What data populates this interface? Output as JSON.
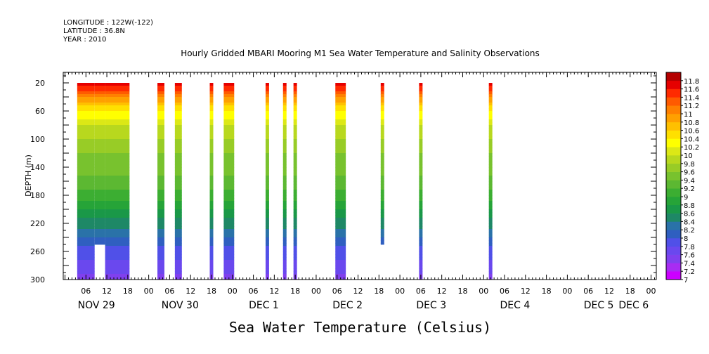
{
  "header": {
    "longitude": "LONGITUDE : 122W(-122)",
    "latitude": "LATITUDE : 36.8N",
    "year": "YEAR : 2010"
  },
  "chart_data": {
    "type": "heatmap",
    "title": "Hourly Gridded MBARI Mooring M1 Sea Water Temperature and Salinity Observations",
    "xlabel": "Sea Water Temperature (Celsius)",
    "ylabel": "DEPTH (m)",
    "x_units": "hours since 2010-11-29 00:00",
    "xlim": [
      -0.5,
      169.5
    ],
    "ylim": [
      300,
      5
    ],
    "y_ticks": [
      20,
      60,
      100,
      140,
      180,
      220,
      260,
      300
    ],
    "x_hour_ticks": [
      "06",
      "12",
      "18",
      "00",
      "06",
      "12",
      "18",
      "00",
      "06",
      "12",
      "18",
      "00",
      "06",
      "12",
      "18",
      "00",
      "06",
      "12",
      "18",
      "00",
      "06",
      "12",
      "18",
      "00",
      "06",
      "12",
      "18",
      "00",
      "06",
      "12",
      "18",
      "00"
    ],
    "x_hour_tick_positions": [
      6,
      12,
      18,
      24,
      30,
      36,
      42,
      48,
      54,
      60,
      66,
      72,
      78,
      84,
      90,
      96,
      102,
      108,
      114,
      120,
      126,
      132,
      138,
      144,
      150,
      156,
      162,
      168,
      174,
      180,
      186,
      192
    ],
    "day_labels": [
      {
        "label": "NOV 29",
        "x": 9
      },
      {
        "label": "NOV 30",
        "x": 33
      },
      {
        "label": "DEC  1",
        "x": 57
      },
      {
        "label": "DEC  2",
        "x": 81
      },
      {
        "label": "DEC  3",
        "x": 105
      },
      {
        "label": "DEC  4",
        "x": 129
      },
      {
        "label": "DEC  5",
        "x": 153
      },
      {
        "label": "DEC  6",
        "x": 163
      }
    ],
    "colorbar": {
      "levels": [
        "7",
        "7.2",
        "7.4",
        "7.6",
        "7.8",
        "8",
        "8.2",
        "8.4",
        "8.6",
        "8.8",
        "9",
        "9.2",
        "9.4",
        "9.6",
        "9.8",
        "10",
        "10.2",
        "10.4",
        "10.6",
        "10.8",
        "11",
        "11.2",
        "11.4",
        "11.6",
        "11.8"
      ],
      "colors": [
        "#cc00ff",
        "#a82cf2",
        "#8040ee",
        "#6a48ee",
        "#5050e8",
        "#2f5fc0",
        "#2a72a8",
        "#1e8866",
        "#1a9848",
        "#26a438",
        "#3cae32",
        "#5cb832",
        "#78c22e",
        "#98cc26",
        "#b8d81e",
        "#dce816",
        "#ffff00",
        "#ffe000",
        "#ffc000",
        "#ffa000",
        "#ff8000",
        "#ff5a00",
        "#ff2a00",
        "#e60000",
        "#b40000"
      ]
    },
    "segments": [
      {
        "x0": 3.5,
        "x1": 8.5,
        "bottom": 300
      },
      {
        "x0": 8.5,
        "x1": 11.5,
        "bottom": 250
      },
      {
        "x0": 11.5,
        "x1": 18.5,
        "bottom": 300
      },
      {
        "x0": 26.5,
        "x1": 28.5,
        "bottom": 300
      },
      {
        "x0": 31.5,
        "x1": 33.5,
        "bottom": 300
      },
      {
        "x0": 41.5,
        "x1": 42.5,
        "bottom": 300
      },
      {
        "x0": 45.5,
        "x1": 48.5,
        "bottom": 300
      },
      {
        "x0": 57.5,
        "x1": 58.5,
        "bottom": 300
      },
      {
        "x0": 62.5,
        "x1": 63.5,
        "bottom": 300
      },
      {
        "x0": 65.5,
        "x1": 66.5,
        "bottom": 300
      },
      {
        "x0": 77.5,
        "x1": 80.5,
        "bottom": 300
      },
      {
        "x0": 90.5,
        "x1": 91.5,
        "bottom": 250
      },
      {
        "x0": 101.5,
        "x1": 102.5,
        "bottom": 300
      },
      {
        "x0": 121.5,
        "x1": 122.5,
        "bottom": 300
      }
    ],
    "temperature_profile": {
      "depth": [
        20,
        40,
        60,
        80,
        100,
        120,
        140,
        160,
        180,
        200,
        220,
        240,
        260,
        280,
        300
      ],
      "temp": [
        11.8,
        11.0,
        10.4,
        10.0,
        9.8,
        9.6,
        9.5,
        9.3,
        9.1,
        8.8,
        8.5,
        8.2,
        7.9,
        7.7,
        7.5
      ]
    }
  }
}
